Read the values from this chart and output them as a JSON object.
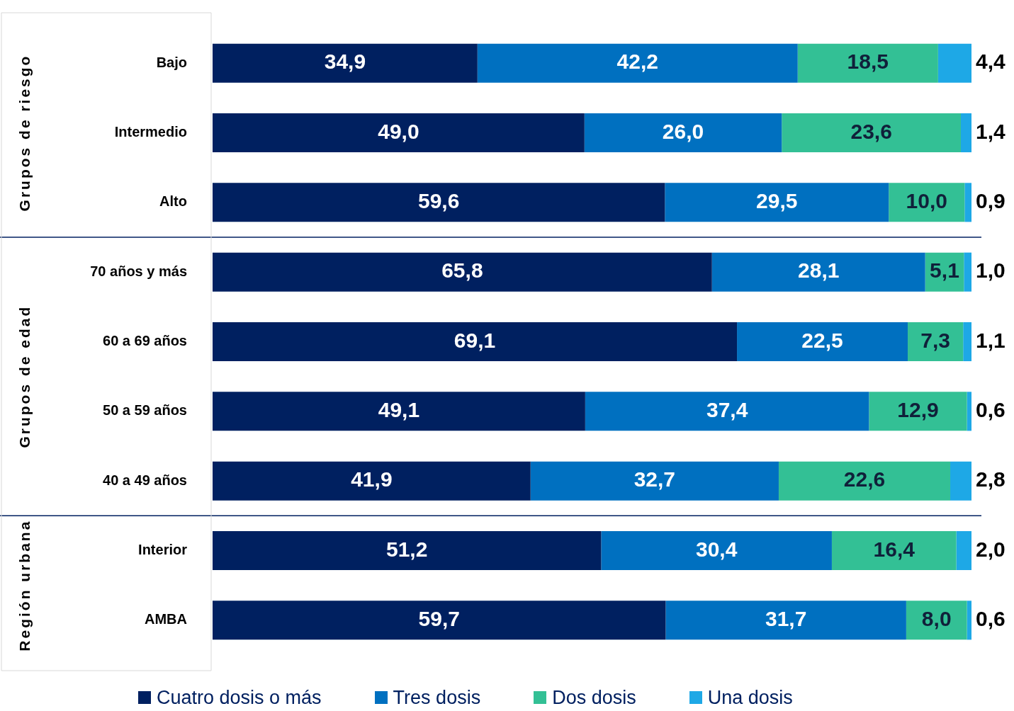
{
  "chart_data": {
    "type": "bar",
    "orientation": "horizontal",
    "stacked": true,
    "legend": "bottom",
    "tick_labels": "y",
    "categories": [
      "Bajo",
      "Intermedio",
      "Alto",
      "70 años y más",
      "60 a 69 años",
      "50 a 59 años",
      "40 a 49 años",
      "Interior",
      "AMBA"
    ],
    "series": [
      {
        "name": "Cuatro dosis o más",
        "color": "#002060",
        "values": [
          34.9,
          49.0,
          59.6,
          65.8,
          69.1,
          49.1,
          41.9,
          51.2,
          59.7
        ],
        "value_labels": [
          "34,9",
          "49,0",
          "59,6",
          "65,8",
          "69,1",
          "49,1",
          "41,9",
          "51,2",
          "59,7"
        ]
      },
      {
        "name": "Tres dosis",
        "color": "#0070c0",
        "values": [
          42.2,
          26.0,
          29.5,
          28.1,
          22.5,
          37.4,
          32.7,
          30.4,
          31.7
        ],
        "value_labels": [
          "42,2",
          "26,0",
          "29,5",
          "28,1",
          "22,5",
          "37,4",
          "32,7",
          "30,4",
          "31,7"
        ]
      },
      {
        "name": "Dos dosis",
        "color": "#33c095",
        "values": [
          18.5,
          23.6,
          10.0,
          5.1,
          7.3,
          12.9,
          22.6,
          16.4,
          8.0
        ],
        "value_labels": [
          "18,5",
          "23,6",
          "10,0",
          "5,1",
          "7,3",
          "12,9",
          "22,6",
          "16,4",
          "8,0"
        ]
      },
      {
        "name": "Una dosis",
        "color": "#1ea8e6",
        "values": [
          4.4,
          1.4,
          0.9,
          1.0,
          1.1,
          0.6,
          2.8,
          2.0,
          0.6
        ],
        "value_labels": [
          "4,4",
          "1,4",
          "0,9",
          "1,0",
          "1,1",
          "0,6",
          "2,8",
          "2,0",
          "0,6"
        ]
      }
    ],
    "annotations": [
      "Grupos de riesgo",
      "Grupos de edad",
      "Región urbana"
    ]
  }
}
